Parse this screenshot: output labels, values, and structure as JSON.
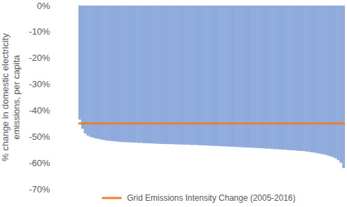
{
  "chart_data": {
    "type": "bar",
    "y_label": "% change in domestic electricity emissions, per capita",
    "categories": [
      null,
      null,
      null,
      null,
      null,
      null,
      null,
      null,
      null,
      null,
      null,
      null,
      null,
      null,
      null,
      null,
      null,
      null,
      null,
      null,
      null,
      null,
      null,
      null,
      null,
      null,
      null,
      null,
      null,
      null,
      null,
      null,
      null,
      null,
      null,
      null,
      null,
      null,
      null,
      null,
      null,
      null,
      null,
      null,
      null,
      null,
      null,
      null,
      null,
      null,
      null,
      null,
      null,
      null,
      null,
      null,
      null,
      null,
      null,
      null,
      null,
      null,
      null,
      null,
      null,
      null,
      null,
      null,
      null,
      null,
      null,
      null,
      null,
      null,
      null,
      null,
      null,
      null,
      null,
      null,
      null,
      null,
      null,
      null,
      null,
      null,
      null,
      null,
      null,
      null,
      null,
      null,
      null,
      null,
      null,
      null,
      null,
      null,
      null,
      null
    ],
    "series": [
      {
        "type": "bar",
        "color": "#8faadc",
        "values": [
          -43.5,
          -47.0,
          -48.8,
          -49.6,
          -50.1,
          -50.4,
          -50.7,
          -50.9,
          -51.1,
          -51.3,
          -51.5,
          -51.6,
          -51.7,
          -51.8,
          -51.9,
          -52.0,
          -52.1,
          -52.1,
          -52.2,
          -52.2,
          -52.3,
          -52.3,
          -52.4,
          -52.4,
          -52.5,
          -52.5,
          -52.6,
          -52.6,
          -52.7,
          -52.7,
          -52.8,
          -52.8,
          -52.8,
          -52.9,
          -52.9,
          -52.9,
          -53.0,
          -53.0,
          -53.0,
          -53.1,
          -53.1,
          -53.1,
          -53.2,
          -53.2,
          -53.2,
          -53.3,
          -53.3,
          -53.4,
          -53.4,
          -53.5,
          -53.5,
          -53.6,
          -53.6,
          -53.7,
          -53.7,
          -53.8,
          -53.8,
          -53.9,
          -53.9,
          -54.0,
          -54.0,
          -54.1,
          -54.1,
          -54.2,
          -54.2,
          -54.3,
          -54.3,
          -54.4,
          -54.4,
          -54.5,
          -54.6,
          -54.6,
          -54.7,
          -54.8,
          -54.8,
          -54.9,
          -55.0,
          -55.0,
          -55.1,
          -55.2,
          -55.2,
          -55.3,
          -55.4,
          -55.5,
          -55.5,
          -55.7,
          -55.8,
          -56.0,
          -56.1,
          -56.3,
          -56.5,
          -56.7,
          -56.9,
          -57.2,
          -57.5,
          -57.8,
          -58.3,
          -59.0,
          -60.0,
          -62.0
        ]
      },
      {
        "type": "line",
        "name": "Grid Emissions Intensity Change (2005-2016)",
        "color": "#ed7d31",
        "values": [
          -45,
          -45,
          -45,
          -45,
          -45,
          -45,
          -45,
          -45,
          -45,
          -45,
          -45,
          -45,
          -45,
          -45,
          -45,
          -45,
          -45,
          -45,
          -45,
          -45,
          -45,
          -45,
          -45,
          -45,
          -45,
          -45,
          -45,
          -45,
          -45,
          -45,
          -45,
          -45,
          -45,
          -45,
          -45,
          -45,
          -45,
          -45,
          -45,
          -45,
          -45,
          -45,
          -45,
          -45,
          -45,
          -45,
          -45,
          -45,
          -45,
          -45,
          -45,
          -45,
          -45,
          -45,
          -45,
          -45,
          -45,
          -45,
          -45,
          -45,
          -45,
          -45,
          -45,
          -45,
          -45,
          -45,
          -45,
          -45,
          -45,
          -45,
          -45,
          -45,
          -45,
          -45,
          -45,
          -45,
          -45,
          -45,
          -45,
          -45,
          -45,
          -45,
          -45,
          -45,
          -45,
          -45,
          -45,
          -45,
          -45,
          -45,
          -45,
          -45,
          -45,
          -45,
          -45,
          -45,
          -45,
          -45,
          -45,
          -45
        ]
      }
    ],
    "ylim": [
      -70,
      0
    ],
    "yticks": [
      {
        "value": 0,
        "label": "0%"
      },
      {
        "value": -10,
        "label": "-10%"
      },
      {
        "value": -20,
        "label": "-20%"
      },
      {
        "value": -30,
        "label": "-30%"
      },
      {
        "value": -40,
        "label": "-40%"
      },
      {
        "value": -50,
        "label": "-50%"
      },
      {
        "value": -60,
        "label": "-60%"
      },
      {
        "value": -70,
        "label": "-70%"
      }
    ],
    "grid": false,
    "legend": "bottom",
    "tick_labels": "y"
  }
}
